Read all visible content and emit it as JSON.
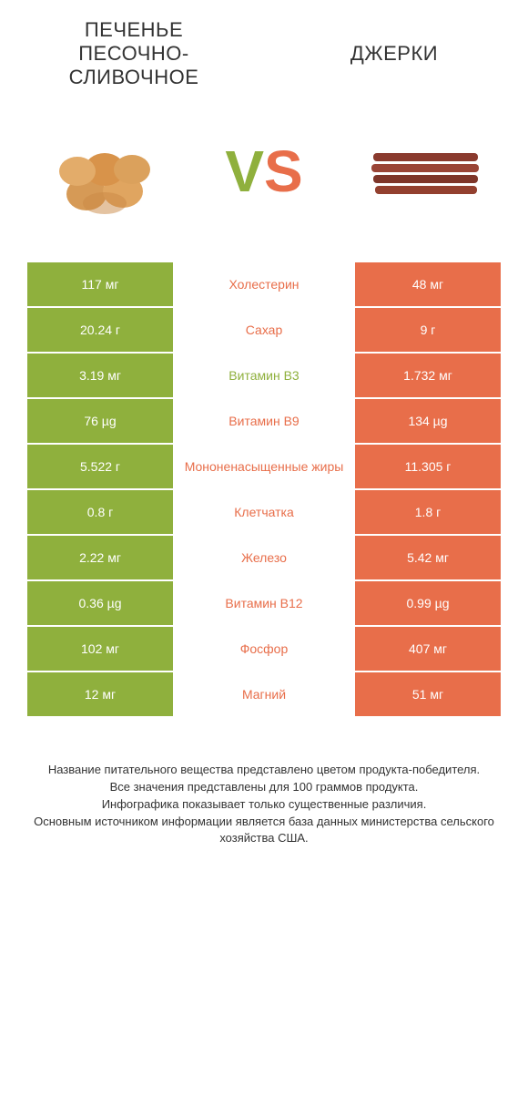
{
  "header": {
    "left_title": "ПЕЧЕНЬЕ ПЕСОЧНО-СЛИВОЧНОЕ",
    "right_title": "ДЖЕРКИ"
  },
  "colors": {
    "left": "#8fb03d",
    "right": "#e86e4a",
    "background": "#ffffff",
    "text": "#333333",
    "vs_v": "#8fb03d",
    "vs_s": "#e86e4a"
  },
  "vs_label": {
    "v": "V",
    "s": "S"
  },
  "comparison": {
    "type": "table",
    "rows": [
      {
        "left": "117 мг",
        "label": "Холестерин",
        "right": "48 мг",
        "label_color": "#e86e4a"
      },
      {
        "left": "20.24 г",
        "label": "Сахар",
        "right": "9 г",
        "label_color": "#e86e4a"
      },
      {
        "left": "3.19 мг",
        "label": "Витамин B3",
        "right": "1.732 мг",
        "label_color": "#8fb03d"
      },
      {
        "left": "76 µg",
        "label": "Витамин B9",
        "right": "134 µg",
        "label_color": "#e86e4a"
      },
      {
        "left": "5.522 г",
        "label": "Мононенасыщенные жиры",
        "right": "11.305 г",
        "label_color": "#e86e4a"
      },
      {
        "left": "0.8 г",
        "label": "Клетчатка",
        "right": "1.8 г",
        "label_color": "#e86e4a"
      },
      {
        "left": "2.22 мг",
        "label": "Железо",
        "right": "5.42 мг",
        "label_color": "#e86e4a"
      },
      {
        "left": "0.36 µg",
        "label": "Витамин B12",
        "right": "0.99 µg",
        "label_color": "#e86e4a"
      },
      {
        "left": "102 мг",
        "label": "Фосфор",
        "right": "407 мг",
        "label_color": "#e86e4a"
      },
      {
        "left": "12 мг",
        "label": "Магний",
        "right": "51 мг",
        "label_color": "#e86e4a"
      }
    ]
  },
  "footnote": {
    "line1": "Название питательного вещества представлено цветом продукта-победителя.",
    "line2": "Все значения представлены для 100 граммов продукта.",
    "line3": "Инфографика показывает только существенные различия.",
    "line4": "Основным источником информации является база данных министерства сельского хозяйства США."
  }
}
